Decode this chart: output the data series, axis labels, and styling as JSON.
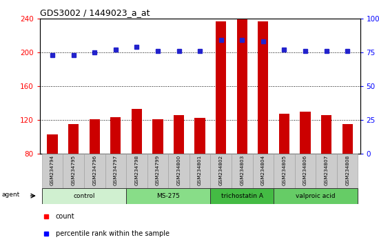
{
  "title": "GDS3002 / 1449023_a_at",
  "samples": [
    "GSM234794",
    "GSM234795",
    "GSM234796",
    "GSM234797",
    "GSM234798",
    "GSM234799",
    "GSM234800",
    "GSM234801",
    "GSM234802",
    "GSM234803",
    "GSM234804",
    "GSM234805",
    "GSM234806",
    "GSM234807",
    "GSM234808"
  ],
  "counts": [
    103,
    115,
    121,
    123,
    133,
    121,
    126,
    122,
    236,
    240,
    236,
    127,
    130,
    126,
    115
  ],
  "percentile": [
    73,
    73,
    75,
    77,
    79,
    76,
    76,
    76,
    84,
    84,
    83,
    77,
    76,
    76,
    76
  ],
  "groups": [
    {
      "label": "control",
      "start": 0,
      "end": 3,
      "color": "#d0f0d0"
    },
    {
      "label": "MS-275",
      "start": 4,
      "end": 7,
      "color": "#88dd88"
    },
    {
      "label": "trichostatin A",
      "start": 8,
      "end": 10,
      "color": "#44bb44"
    },
    {
      "label": "valproic acid",
      "start": 11,
      "end": 14,
      "color": "#66cc66"
    }
  ],
  "ylim_left": [
    80,
    240
  ],
  "ylim_right": [
    0,
    100
  ],
  "yticks_left": [
    80,
    120,
    160,
    200,
    240
  ],
  "yticks_right": [
    0,
    25,
    50,
    75,
    100
  ],
  "bar_color": "#cc0000",
  "dot_color": "#2222cc",
  "bar_bottom": 80,
  "bar_width": 0.5,
  "dot_size": 4
}
